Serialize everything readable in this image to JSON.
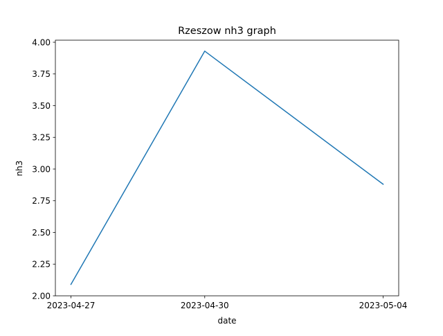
{
  "chart_data": {
    "type": "line",
    "title": "Rzeszow nh3 graph",
    "xlabel": "date",
    "ylabel": "nh3",
    "categories": [
      "2023-04-27",
      "2023-04-30",
      "2023-05-04"
    ],
    "series": [
      {
        "values": [
          2.09,
          3.93,
          2.88
        ],
        "color": "#1f77b4"
      }
    ],
    "ylim": [
      2.0,
      4.0
    ],
    "yticks": [
      "2.00",
      "2.25",
      "2.50",
      "2.75",
      "3.00",
      "3.25",
      "3.50",
      "3.75",
      "4.00"
    ],
    "grid": false,
    "legend": "none"
  }
}
